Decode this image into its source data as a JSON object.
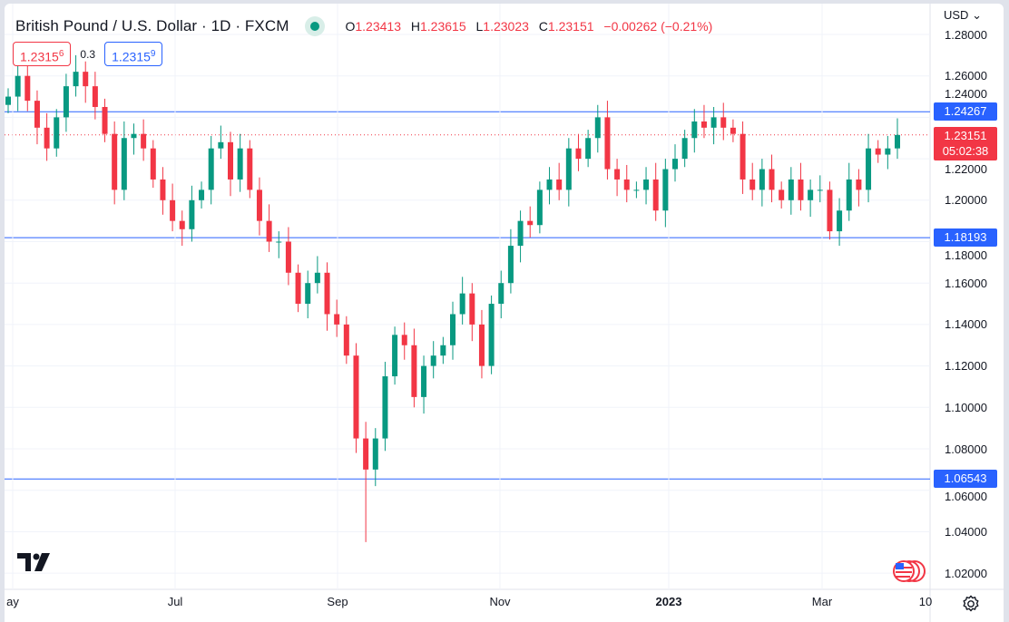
{
  "header": {
    "title": "British Pound / U.S. Dollar · 1D · FXCM",
    "ohlc": {
      "o_label": "O",
      "o": "1.23413",
      "h_label": "H",
      "h": "1.23615",
      "l_label": "L",
      "l": "1.23023",
      "c_label": "C",
      "c": "1.23151",
      "change": "−0.00262 (−0.21%)"
    },
    "sell_price": "1.2315",
    "sell_sup": "6",
    "spread": "0.3",
    "buy_price": "1.2315",
    "buy_sup": "9"
  },
  "currency": "USD",
  "price_axis": [
    "1.28000",
    "1.26000",
    "1.24000",
    "1.22000",
    "1.20000",
    "1.18000",
    "1.16000",
    "1.14000",
    "1.12000",
    "1.10000",
    "1.08000",
    "1.06000",
    "1.04000",
    "1.02000"
  ],
  "time_axis": [
    {
      "label": "ay",
      "bold": false
    },
    {
      "label": "Jul",
      "bold": false
    },
    {
      "label": "Sep",
      "bold": false
    },
    {
      "label": "Nov",
      "bold": false
    },
    {
      "label": "2023",
      "bold": true
    },
    {
      "label": "Mar",
      "bold": false
    },
    {
      "label": "10",
      "bold": false
    }
  ],
  "horizontal_lines": [
    "1.24267",
    "1.18193",
    "1.06543"
  ],
  "last_price": {
    "value": "1.23151",
    "countdown": "05:02:38"
  },
  "colors": {
    "up": "#089981",
    "down": "#f23645",
    "line": "#2962ff"
  },
  "chart_data": {
    "type": "candlestick",
    "symbol": "GBPUSD",
    "interval": "1D",
    "ylim": [
      1.01,
      1.285
    ],
    "closes": [
      1.25,
      1.26,
      1.248,
      1.235,
      1.225,
      1.24,
      1.255,
      1.262,
      1.255,
      1.245,
      1.232,
      1.205,
      1.23,
      1.232,
      1.225,
      1.21,
      1.2,
      1.19,
      1.186,
      1.2,
      1.205,
      1.225,
      1.228,
      1.21,
      1.225,
      1.205,
      1.19,
      1.18,
      1.18,
      1.165,
      1.15,
      1.16,
      1.165,
      1.145,
      1.14,
      1.125,
      1.085,
      1.07,
      1.085,
      1.115,
      1.135,
      1.13,
      1.105,
      1.12,
      1.125,
      1.13,
      1.145,
      1.155,
      1.14,
      1.12,
      1.15,
      1.16,
      1.178,
      1.19,
      1.188,
      1.205,
      1.21,
      1.205,
      1.225,
      1.22,
      1.23,
      1.24,
      1.215,
      1.21,
      1.205,
      1.205,
      1.21,
      1.195,
      1.215,
      1.22,
      1.23,
      1.238,
      1.235,
      1.24,
      1.235,
      1.232,
      1.21,
      1.205,
      1.215,
      1.205,
      1.2,
      1.21,
      1.2,
      1.205,
      1.205,
      1.185,
      1.195,
      1.21,
      1.205,
      1.225,
      1.222,
      1.225,
      1.2315
    ],
    "min_low": 1.035
  }
}
